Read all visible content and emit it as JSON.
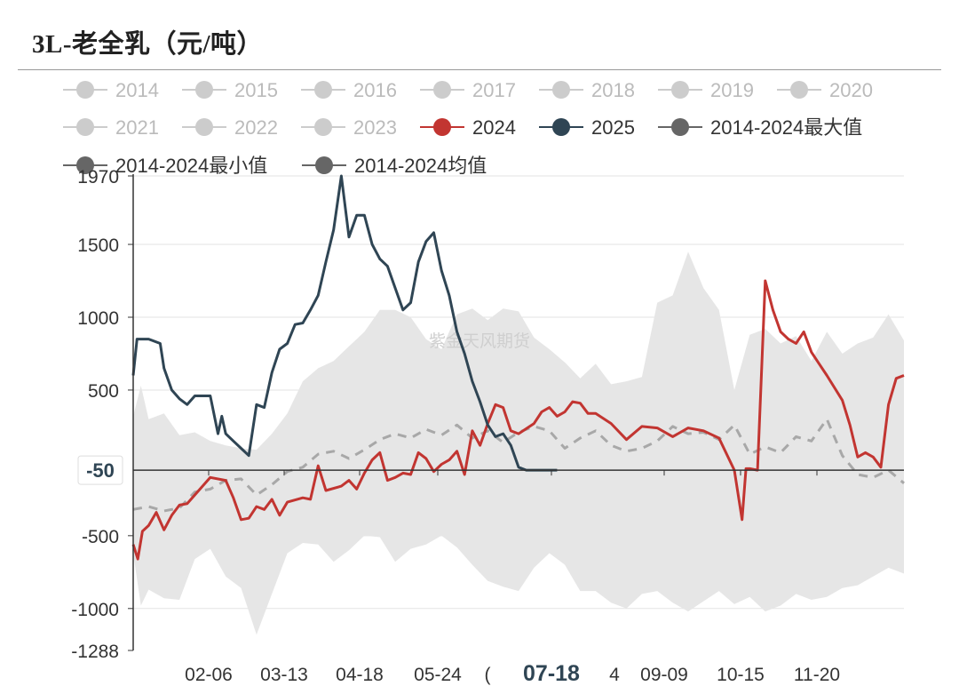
{
  "page": {
    "title": "3L-老全乳（元/吨）"
  },
  "chart_data": {
    "type": "line",
    "title": "3L-老全乳（元/吨）",
    "ylim": [
      -1288,
      1970
    ],
    "yticks": [
      1970,
      1500,
      1000,
      500,
      -500,
      -1000,
      -1288
    ],
    "current_value_label": "-50",
    "x_ticks": [
      "02-06",
      "03-13",
      "04-18",
      "05-24",
      "07-18",
      "09-09",
      "10-15",
      "11-20"
    ],
    "x_ticks_partial": [
      "(",
      "4"
    ],
    "highlighted_x_tick": "07-18",
    "watermark": "紫金天风期货",
    "colors": {
      "y2024": "#c23531",
      "y2025": "#2f4554",
      "stat": "#666666",
      "band": "#e6e6e6",
      "inactive": "#cccccc"
    },
    "legend": [
      {
        "name": "2014",
        "active": false
      },
      {
        "name": "2015",
        "active": false
      },
      {
        "name": "2016",
        "active": false
      },
      {
        "name": "2017",
        "active": false
      },
      {
        "name": "2018",
        "active": false
      },
      {
        "name": "2019",
        "active": false
      },
      {
        "name": "2020",
        "active": false
      },
      {
        "name": "2021",
        "active": false
      },
      {
        "name": "2022",
        "active": false
      },
      {
        "name": "2023",
        "active": false
      },
      {
        "name": "2024",
        "active": true
      },
      {
        "name": "2025",
        "active": true
      },
      {
        "name": "2014-2024最大值",
        "active": true
      },
      {
        "name": "2014-2024最小值",
        "active": true
      },
      {
        "name": "2014-2024均值",
        "active": true
      }
    ],
    "x_domain": [
      0,
      1
    ],
    "series": [
      {
        "name": "2014-2024最大值",
        "style": "band-top",
        "x": [
          0,
          0.01,
          0.02,
          0.04,
          0.06,
          0.08,
          0.1,
          0.12,
          0.14,
          0.16,
          0.18,
          0.2,
          0.22,
          0.24,
          0.26,
          0.28,
          0.3,
          0.32,
          0.34,
          0.36,
          0.38,
          0.4,
          0.42,
          0.44,
          0.46,
          0.48,
          0.5,
          0.52,
          0.54,
          0.56,
          0.58,
          0.6,
          0.62,
          0.64,
          0.66,
          0.68,
          0.7,
          0.72,
          0.74,
          0.76,
          0.78,
          0.8,
          0.82,
          0.84,
          0.86,
          0.88,
          0.9,
          0.92,
          0.94,
          0.96,
          0.98,
          1
        ],
        "values": [
          320,
          530,
          300,
          340,
          190,
          210,
          150,
          120,
          100,
          90,
          200,
          340,
          560,
          650,
          700,
          800,
          900,
          1050,
          1050,
          1000,
          850,
          780,
          1020,
          1060,
          980,
          1060,
          1040,
          860,
          780,
          690,
          580,
          680,
          540,
          560,
          590,
          1100,
          1150,
          1450,
          1200,
          1050,
          500,
          880,
          920,
          820,
          870,
          700,
          900,
          750,
          820,
          860,
          1020,
          840
        ]
      },
      {
        "name": "2014-2024最小值",
        "style": "band-bottom",
        "x": [
          0,
          0.01,
          0.02,
          0.04,
          0.06,
          0.08,
          0.1,
          0.12,
          0.14,
          0.16,
          0.18,
          0.2,
          0.22,
          0.24,
          0.26,
          0.28,
          0.3,
          0.32,
          0.34,
          0.36,
          0.38,
          0.4,
          0.42,
          0.44,
          0.46,
          0.48,
          0.5,
          0.52,
          0.54,
          0.56,
          0.58,
          0.6,
          0.62,
          0.64,
          0.66,
          0.68,
          0.7,
          0.72,
          0.74,
          0.76,
          0.78,
          0.8,
          0.82,
          0.84,
          0.86,
          0.88,
          0.9,
          0.92,
          0.94,
          0.96,
          0.98,
          1
        ],
        "values": [
          -620,
          -980,
          -870,
          -930,
          -940,
          -660,
          -590,
          -780,
          -860,
          -1180,
          -900,
          -620,
          -550,
          -560,
          -680,
          -600,
          -500,
          -510,
          -680,
          -590,
          -560,
          -500,
          -580,
          -700,
          -810,
          -850,
          -880,
          -720,
          -620,
          -700,
          -880,
          -880,
          -960,
          -1000,
          -900,
          -880,
          -960,
          -1020,
          -950,
          -880,
          -970,
          -920,
          -1020,
          -980,
          -900,
          -940,
          -920,
          -860,
          -840,
          -780,
          -720,
          -760
        ]
      },
      {
        "name": "2014-2024均值",
        "style": "dashed",
        "x": [
          0,
          0.02,
          0.04,
          0.06,
          0.08,
          0.1,
          0.12,
          0.14,
          0.16,
          0.18,
          0.2,
          0.22,
          0.24,
          0.26,
          0.28,
          0.3,
          0.32,
          0.34,
          0.36,
          0.38,
          0.4,
          0.42,
          0.44,
          0.46,
          0.48,
          0.5,
          0.52,
          0.54,
          0.56,
          0.58,
          0.6,
          0.62,
          0.64,
          0.66,
          0.68,
          0.7,
          0.72,
          0.74,
          0.76,
          0.78,
          0.8,
          0.82,
          0.84,
          0.86,
          0.88,
          0.9,
          0.92,
          0.94,
          0.96,
          0.98,
          1
        ],
        "values": [
          -320,
          -300,
          -330,
          -310,
          -200,
          -180,
          -120,
          -110,
          -220,
          -150,
          -60,
          -30,
          60,
          80,
          30,
          90,
          160,
          200,
          170,
          230,
          190,
          260,
          170,
          220,
          140,
          210,
          250,
          220,
          100,
          170,
          220,
          120,
          80,
          100,
          150,
          250,
          200,
          210,
          160,
          260,
          60,
          110,
          70,
          180,
          150,
          300,
          50,
          -80,
          -100,
          -50,
          -140
        ]
      },
      {
        "name": "2024",
        "style": "solid",
        "x": [
          0,
          0.006,
          0.012,
          0.02,
          0.03,
          0.04,
          0.05,
          0.06,
          0.07,
          0.08,
          0.1,
          0.12,
          0.13,
          0.14,
          0.15,
          0.16,
          0.17,
          0.18,
          0.19,
          0.2,
          0.22,
          0.23,
          0.24,
          0.25,
          0.27,
          0.28,
          0.29,
          0.3,
          0.31,
          0.32,
          0.33,
          0.34,
          0.35,
          0.36,
          0.37,
          0.38,
          0.39,
          0.4,
          0.41,
          0.42,
          0.43,
          0.44,
          0.45,
          0.46,
          0.47,
          0.48,
          0.49,
          0.5,
          0.52,
          0.53,
          0.54,
          0.55,
          0.56,
          0.57,
          0.58,
          0.59,
          0.6,
          0.62,
          0.64,
          0.66,
          0.68,
          0.7,
          0.72,
          0.74,
          0.76,
          0.78,
          0.79,
          0.795,
          0.8,
          0.81,
          0.82,
          0.83,
          0.84,
          0.85,
          0.86,
          0.87,
          0.88,
          0.89,
          0.9,
          0.92,
          0.93,
          0.94,
          0.95,
          0.96,
          0.97,
          0.98,
          0.99,
          1
        ],
        "values": [
          -560,
          -660,
          -470,
          -430,
          -340,
          -460,
          -360,
          -290,
          -280,
          -220,
          -100,
          -120,
          -240,
          -390,
          -380,
          -300,
          -320,
          -250,
          -360,
          -270,
          -240,
          -250,
          -20,
          -190,
          -160,
          -120,
          -180,
          -70,
          20,
          70,
          -120,
          -100,
          -70,
          -80,
          70,
          30,
          -60,
          -10,
          20,
          80,
          -80,
          220,
          120,
          270,
          400,
          380,
          220,
          200,
          270,
          350,
          380,
          320,
          350,
          420,
          410,
          340,
          340,
          270,
          160,
          250,
          240,
          180,
          240,
          220,
          170,
          -50,
          -390,
          -40,
          -40,
          -50,
          1250,
          1050,
          900,
          850,
          820,
          900,
          760,
          680,
          600,
          430,
          260,
          40,
          70,
          40,
          -30,
          400,
          580,
          600
        ]
      },
      {
        "name": "2025",
        "style": "solid",
        "x": [
          0,
          0.005,
          0.02,
          0.035,
          0.04,
          0.05,
          0.06,
          0.07,
          0.08,
          0.1,
          0.11,
          0.115,
          0.12,
          0.13,
          0.14,
          0.15,
          0.16,
          0.17,
          0.18,
          0.19,
          0.2,
          0.21,
          0.22,
          0.23,
          0.24,
          0.25,
          0.26,
          0.27,
          0.28,
          0.29,
          0.3,
          0.31,
          0.32,
          0.33,
          0.34,
          0.35,
          0.36,
          0.37,
          0.38,
          0.39,
          0.4,
          0.41,
          0.42,
          0.43,
          0.44,
          0.45,
          0.46,
          0.47,
          0.48,
          0.49,
          0.5,
          0.51,
          0.52,
          0.53,
          0.54,
          0.55
        ],
        "values": [
          600,
          850,
          850,
          820,
          650,
          500,
          440,
          400,
          460,
          460,
          200,
          320,
          200,
          150,
          100,
          50,
          400,
          380,
          620,
          780,
          820,
          950,
          960,
          1050,
          1150,
          1380,
          1600,
          1970,
          1550,
          1700,
          1700,
          1500,
          1400,
          1350,
          1200,
          1050,
          1100,
          1380,
          1520,
          1580,
          1320,
          1150,
          900,
          750,
          560,
          420,
          260,
          180,
          200,
          120,
          -30,
          -50,
          -50,
          -50,
          -50,
          -50
        ]
      }
    ]
  }
}
